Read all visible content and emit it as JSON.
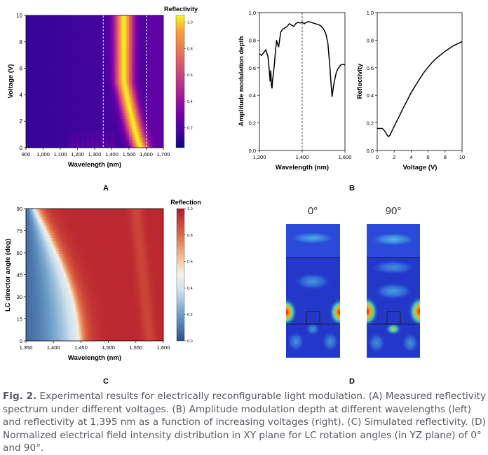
{
  "figure_label": "Fig. 2.",
  "caption_text": "Experimental results for electrically reconfigurable light modulation. (A) Measured reflectivity spectrum under different voltages. (B) Amplitude modulation depth at different wavelengths (left) and reflectivity at 1,395 nm as a function of increasing voltages (right). (C) Simulated reflectivity. (D) Normalized electrical field intensity distribution in XY plane for LC rotation angles (in YZ plane) of 0° and 90°.",
  "panel_labels": {
    "a": "A",
    "b": "B",
    "c": "C",
    "d": "D"
  },
  "colors": {
    "line": "#000000",
    "dashed": "#ffffff"
  },
  "chart_data": [
    {
      "id": "A",
      "type": "heatmap",
      "colormap": "plasma",
      "xlabel": "Wavelength (nm)",
      "ylabel": "Voltage (V)",
      "xlim": [
        900,
        1700
      ],
      "ylim": [
        0,
        10
      ],
      "xticks": [
        "900",
        "1,000",
        "1,100",
        "1,200",
        "1,300",
        "1,400",
        "1,500",
        "1,600",
        "1,700"
      ],
      "yticks": [
        "0",
        "2",
        "4",
        "6",
        "8",
        "10"
      ],
      "colorbar_label": "Reflectivity",
      "colorbar_ticks": [
        "0.2",
        "0.4",
        "0.6",
        "0.8",
        "1.0"
      ],
      "colorbar_range": [
        0.05,
        1.05
      ],
      "dashed_lines_x": [
        1350,
        1600
      ],
      "description_values": {
        "band_center_at_0V": 1570,
        "band_center_at_10V": 1470
      }
    },
    {
      "id": "B-left",
      "type": "line",
      "xlabel": "Wavelength (nm)",
      "ylabel": "Amplitude modulation depth",
      "xlim": [
        1200,
        1600
      ],
      "ylim": [
        0,
        1
      ],
      "xticks": [
        "1,200",
        "1,400",
        "1,600"
      ],
      "yticks": [
        "0.0",
        "0.2",
        "0.4",
        "0.6",
        "0.8",
        "1.0"
      ],
      "dashed_line_x": 1400,
      "x": [
        1200,
        1210,
        1220,
        1230,
        1240,
        1245,
        1250,
        1253,
        1256,
        1259,
        1262,
        1265,
        1270,
        1275,
        1280,
        1285,
        1290,
        1295,
        1300,
        1310,
        1320,
        1330,
        1340,
        1350,
        1360,
        1370,
        1380,
        1390,
        1400,
        1410,
        1420,
        1430,
        1440,
        1450,
        1460,
        1470,
        1480,
        1490,
        1500,
        1510,
        1520,
        1530,
        1535,
        1540,
        1545,
        1550,
        1560,
        1570,
        1580,
        1590,
        1600
      ],
      "y": [
        0.7,
        0.69,
        0.71,
        0.73,
        0.68,
        0.6,
        0.5,
        0.58,
        0.47,
        0.45,
        0.52,
        0.55,
        0.63,
        0.72,
        0.8,
        0.77,
        0.75,
        0.81,
        0.86,
        0.88,
        0.89,
        0.9,
        0.92,
        0.91,
        0.9,
        0.92,
        0.93,
        0.925,
        0.93,
        0.92,
        0.93,
        0.935,
        0.93,
        0.925,
        0.92,
        0.915,
        0.91,
        0.9,
        0.88,
        0.85,
        0.78,
        0.6,
        0.48,
        0.39,
        0.45,
        0.5,
        0.57,
        0.6,
        0.62,
        0.625,
        0.62
      ]
    },
    {
      "id": "B-right",
      "type": "line",
      "xlabel": "Voltage (V)",
      "ylabel": "Reflectivity",
      "xlim": [
        0,
        10
      ],
      "ylim": [
        0,
        1
      ],
      "xticks": [
        "0",
        "2",
        "4",
        "6",
        "8",
        "10"
      ],
      "yticks": [
        "0.0",
        "0.2",
        "0.4",
        "0.6",
        "0.8",
        "1.0"
      ],
      "x": [
        0,
        0.3,
        0.6,
        0.9,
        1.1,
        1.3,
        1.5,
        1.8,
        2.2,
        2.6,
        3,
        3.5,
        4,
        4.5,
        5,
        5.5,
        6,
        6.5,
        7,
        7.5,
        8,
        8.5,
        9,
        9.5,
        10
      ],
      "y": [
        0.16,
        0.16,
        0.16,
        0.14,
        0.12,
        0.1,
        0.11,
        0.15,
        0.2,
        0.25,
        0.3,
        0.36,
        0.42,
        0.47,
        0.52,
        0.565,
        0.605,
        0.64,
        0.67,
        0.695,
        0.72,
        0.74,
        0.76,
        0.775,
        0.79
      ]
    },
    {
      "id": "C",
      "type": "heatmap",
      "colormap": "RdBu_r",
      "xlabel": "Wavelength (nm)",
      "ylabel": "LC director angle (deg)",
      "xlim": [
        1350,
        1600
      ],
      "ylim": [
        0,
        90
      ],
      "xticks": [
        "1,350",
        "1,400",
        "1,450",
        "1,500",
        "1,550",
        "1,600"
      ],
      "yticks": [
        "0",
        "15",
        "30",
        "45",
        "60",
        "75",
        "90"
      ],
      "colorbar_label": "Reflection",
      "colorbar_ticks": [
        "0.0",
        "0.2",
        "0.4",
        "0.6",
        "0.8",
        "1.0"
      ],
      "colorbar_range": [
        0,
        1
      ],
      "description_values": {
        "edge_at_0deg": 1445,
        "edge_at_90deg": 1375
      }
    },
    {
      "id": "D",
      "type": "heatmap",
      "panels": [
        {
          "label": "0°"
        },
        {
          "label": "90°"
        }
      ]
    }
  ]
}
